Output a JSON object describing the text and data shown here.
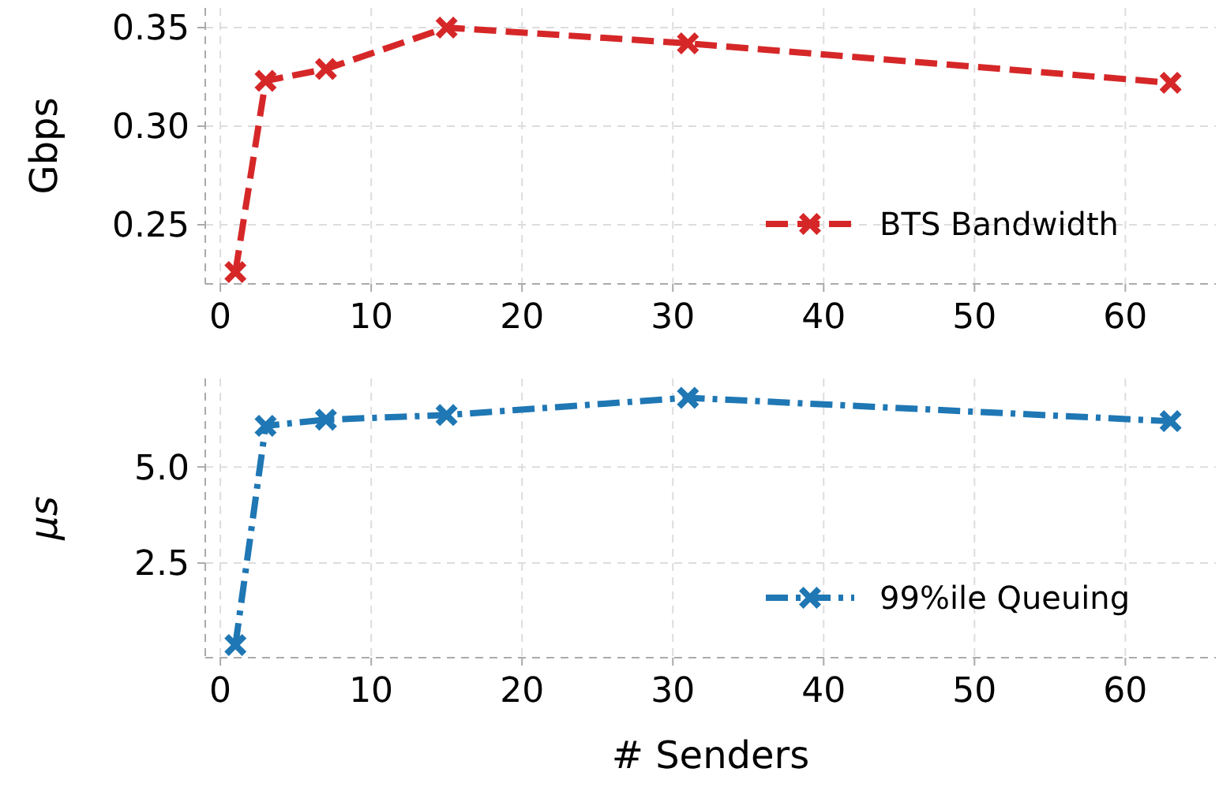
{
  "chart_data": [
    {
      "type": "line",
      "ylabel": "Gbps",
      "x": [
        1,
        3,
        7,
        15,
        31,
        63
      ],
      "xlim": [
        -1,
        66
      ],
      "xticks": [
        0,
        10,
        20,
        30,
        40,
        50,
        60
      ],
      "ylim": [
        0.22,
        0.36
      ],
      "yticks": [
        {
          "value": 0.25,
          "label": "0.25"
        },
        {
          "value": 0.3,
          "label": "0.30"
        },
        {
          "value": 0.35,
          "label": "0.35"
        }
      ],
      "grid": true,
      "legend": "bottom right",
      "marker": "cross",
      "line_style": "dashed",
      "series": [
        {
          "name": "BTS Bandwidth",
          "color": "#d62728",
          "values": [
            0.226,
            0.323,
            0.329,
            0.35,
            0.342,
            0.322
          ]
        }
      ]
    },
    {
      "type": "line",
      "ylabel": "μs",
      "xlabel": "# Senders",
      "x": [
        1,
        3,
        7,
        15,
        31,
        63
      ],
      "xlim": [
        -1,
        66
      ],
      "xticks": [
        0,
        10,
        20,
        30,
        40,
        50,
        60
      ],
      "ylim": [
        0.04,
        7.3
      ],
      "yticks": [
        2.5,
        {
          "value": 5,
          "label": "5.0"
        }
      ],
      "grid": true,
      "legend": "bottom right",
      "marker": "cross",
      "line_style": "dashdot",
      "series": [
        {
          "name": "99%ile Queuing",
          "color": "#1f77b4",
          "values": [
            0.37,
            6.07,
            6.23,
            6.35,
            6.8,
            6.19
          ]
        }
      ]
    }
  ]
}
